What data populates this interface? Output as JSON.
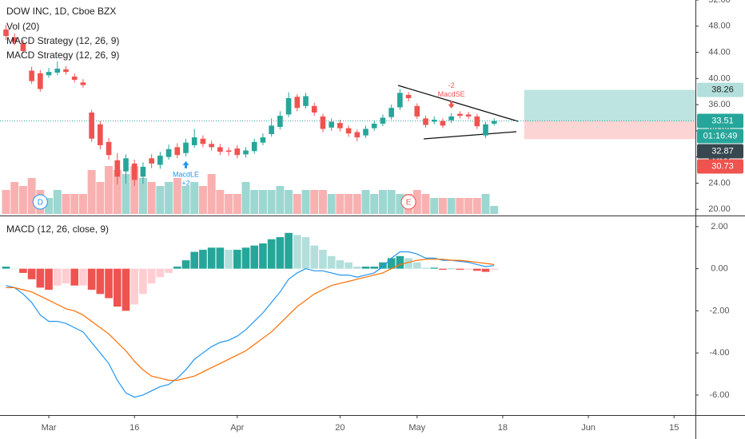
{
  "chart_data": [
    {
      "type": "candlestick",
      "title": "DOW INC, 1D, Cboe BZX",
      "indicators": [
        "Vol (20)",
        "MACD Strategy (12, 26, 9)",
        "MACD Strategy (12, 26, 9)"
      ],
      "xlim": [
        -0.7,
        80.5
      ],
      "ylim": [
        19.3,
        52.0
      ],
      "yticks": [
        {
          "value": 20,
          "label": "20.00"
        },
        {
          "value": 24,
          "label": "24.00"
        },
        {
          "value": 28,
          "label": "28.00"
        },
        {
          "value": 32,
          "label": "32.00"
        },
        {
          "value": 36,
          "label": "36.00"
        },
        {
          "value": 40,
          "label": "40.00"
        },
        {
          "value": 44,
          "label": "44.00"
        },
        {
          "value": 48,
          "label": "48.00"
        },
        {
          "value": 52,
          "label": "52.00"
        }
      ],
      "up_color": "#26a69a",
      "down_color": "#ef5350",
      "open": [
        47.5,
        46.3,
        45.4,
        41.2,
        40.8,
        40.5,
        40.9,
        41.4,
        40.3,
        39.4,
        34.8,
        33.0,
        30.3,
        27.5,
        25.8,
        27.0,
        25.0,
        27.8,
        26.8,
        28.0,
        29.5,
        28.6,
        29.8,
        30.8,
        30.0,
        29.5,
        29.0,
        29.3,
        28.4,
        28.9,
        30.2,
        31.5,
        32.6,
        34.5,
        37.2,
        35.8,
        35.8,
        34.2,
        32.5,
        33.2,
        32.4,
        31.8,
        31.3,
        32.4,
        33.1,
        34.1,
        35.6,
        37.5,
        35.8,
        33.9,
        33.4,
        33.5,
        33.6,
        34.6,
        34.5,
        34.2,
        31.3,
        33.1
      ],
      "high": [
        48.2,
        46.9,
        45.9,
        41.8,
        41.3,
        41.6,
        42.6,
        41.9,
        40.8,
        39.9,
        35.2,
        33.5,
        30.9,
        28.6,
        28.4,
        27.6,
        27.2,
        28.4,
        28.8,
        29.9,
        30.1,
        30.8,
        32.3,
        31.3,
        30.5,
        30.0,
        29.5,
        29.8,
        29.5,
        30.8,
        31.6,
        33.9,
        35.0,
        37.9,
        37.6,
        37.8,
        36.3,
        34.6,
        33.9,
        33.7,
        32.8,
        32.2,
        32.8,
        33.6,
        34.5,
        36.0,
        38.4,
        37.9,
        36.2,
        34.3,
        34.2,
        33.9,
        34.7,
        35.0,
        34.9,
        34.6,
        33.4,
        33.9
      ],
      "low": [
        45.9,
        45.1,
        43.8,
        39.2,
        38.0,
        40.1,
        40.5,
        40.6,
        39.4,
        38.6,
        30.3,
        29.2,
        27.6,
        23.8,
        23.9,
        23.6,
        23.9,
        26.3,
        26.2,
        27.6,
        27.8,
        28.1,
        29.4,
        29.5,
        29.0,
        28.3,
        28.2,
        27.8,
        27.9,
        28.5,
        29.8,
        31.1,
        32.2,
        34.1,
        35.0,
        35.4,
        34.3,
        31.8,
        32.0,
        31.9,
        31.1,
        30.4,
        30.9,
        32.0,
        32.7,
        33.7,
        35.2,
        36.5,
        33.8,
        32.5,
        33.0,
        32.4,
        33.2,
        33.9,
        33.8,
        32.3,
        30.9,
        32.8
      ],
      "close": [
        46.5,
        45.6,
        44.2,
        39.6,
        38.4,
        41.0,
        41.5,
        41.0,
        39.8,
        39.0,
        30.8,
        29.8,
        28.3,
        25.0,
        27.8,
        24.5,
        26.5,
        27.0,
        28.2,
        29.2,
        28.3,
        30.2,
        31.0,
        30.0,
        29.5,
        28.8,
        28.8,
        28.3,
        29.0,
        30.3,
        31.0,
        32.8,
        34.3,
        37.0,
        35.5,
        37.3,
        34.8,
        32.3,
        33.4,
        32.4,
        31.6,
        31.0,
        32.3,
        33.1,
        34.0,
        35.5,
        37.8,
        37.0,
        34.2,
        32.9,
        33.7,
        32.8,
        34.2,
        34.3,
        34.2,
        32.7,
        33.0,
        33.51
      ],
      "volume": [
        6,
        8,
        7,
        9,
        6,
        4,
        6,
        5,
        5,
        5,
        11,
        8,
        12,
        11,
        10,
        12,
        9,
        8,
        7,
        8,
        9,
        7,
        8,
        7,
        10,
        6,
        5,
        5,
        8,
        6,
        6,
        6,
        7,
        6,
        5,
        6,
        6,
        6,
        5,
        5,
        5,
        5,
        6,
        5,
        6,
        6,
        5,
        5,
        6,
        5,
        4,
        4,
        4,
        4,
        4,
        4,
        5,
        2
      ],
      "price_labels": [
        38.26,
        33.51,
        32.87,
        30.73
      ],
      "price_label_colors": [
        "#b2dfdb",
        "#26a69a",
        "#37474f",
        "#ef5350"
      ],
      "countdown": "01:16:49",
      "position_start": 60.5,
      "signals": [
        {
          "index": 21,
          "label": "MacdLE",
          "qty": "+2",
          "color": "#2196f3"
        },
        {
          "index": 52,
          "label": "MacdSE",
          "qty": "-2",
          "color": "#ef5350"
        }
      ],
      "events": [
        {
          "index": 4,
          "label": "D",
          "color": "#2196f3"
        },
        {
          "index": 47,
          "label": "E",
          "color": "#ef5350"
        }
      ]
    },
    {
      "type": "macd",
      "title": "MACD (12, 26, close, 9)",
      "xlim": [
        -0.7,
        80.5
      ],
      "ylim": [
        -6.95,
        2.45
      ],
      "yticks": [
        {
          "value": -6,
          "label": "-6.00"
        },
        {
          "value": -4,
          "label": "-4.00"
        },
        {
          "value": -2,
          "label": "-2.00"
        },
        {
          "value": 0,
          "label": "0.00"
        },
        {
          "value": 2,
          "label": "2.00"
        }
      ],
      "xticks": [
        {
          "value": 5,
          "label": "Mar"
        },
        {
          "value": 15,
          "label": "16"
        },
        {
          "value": 27,
          "label": "Apr"
        },
        {
          "value": 39,
          "label": "20"
        },
        {
          "value": 48,
          "label": "May"
        },
        {
          "value": 58,
          "label": "18"
        },
        {
          "value": 68,
          "label": "Jun"
        },
        {
          "value": 78,
          "label": "15"
        }
      ],
      "histogram": [
        0.1,
        0.0,
        -0.2,
        -0.5,
        -0.9,
        -1.0,
        -0.8,
        -0.7,
        -0.8,
        -0.8,
        -1.0,
        -1.2,
        -1.4,
        -1.8,
        -2.0,
        -1.7,
        -1.2,
        -0.7,
        -0.4,
        -0.2,
        0.1,
        0.4,
        0.8,
        0.9,
        1.0,
        1.0,
        0.9,
        0.9,
        1.0,
        1.1,
        1.2,
        1.4,
        1.5,
        1.7,
        1.6,
        1.5,
        1.1,
        0.9,
        0.6,
        0.4,
        0.3,
        0.1,
        0.1,
        0.1,
        0.3,
        0.5,
        0.6,
        0.5,
        0.3,
        0.05,
        0.05,
        -0.05,
        0,
        -0.05,
        -0.05,
        -0.1,
        -0.15,
        -0.05
      ],
      "series": [
        {
          "color": "#2196f3",
          "values": [
            -0.8,
            -0.9,
            -1.2,
            -1.6,
            -2.2,
            -2.5,
            -2.5,
            -2.6,
            -2.8,
            -3.0,
            -3.5,
            -4.0,
            -4.5,
            -5.3,
            -5.9,
            -6.1,
            -6.0,
            -5.8,
            -5.6,
            -5.5,
            -5.2,
            -4.8,
            -4.3,
            -4.0,
            -3.7,
            -3.5,
            -3.4,
            -3.2,
            -2.9,
            -2.5,
            -2.1,
            -1.6,
            -1.1,
            -0.5,
            -0.2,
            0.0,
            -0.1,
            -0.1,
            -0.2,
            -0.3,
            -0.3,
            -0.4,
            -0.3,
            -0.2,
            0.1,
            0.5,
            0.8,
            0.8,
            0.7,
            0.5,
            0.5,
            0.4,
            0.4,
            0.35,
            0.3,
            0.2,
            0.1,
            0.15
          ]
        },
        {
          "color": "#ff6d00",
          "values": [
            -0.9,
            -0.9,
            -1.0,
            -1.1,
            -1.3,
            -1.5,
            -1.7,
            -1.9,
            -2.0,
            -2.2,
            -2.5,
            -2.8,
            -3.1,
            -3.5,
            -3.9,
            -4.4,
            -4.8,
            -5.1,
            -5.2,
            -5.3,
            -5.3,
            -5.2,
            -5.1,
            -4.9,
            -4.7,
            -4.5,
            -4.3,
            -4.1,
            -3.9,
            -3.6,
            -3.3,
            -3.0,
            -2.6,
            -2.2,
            -1.8,
            -1.5,
            -1.2,
            -1.0,
            -0.8,
            -0.7,
            -0.6,
            -0.5,
            -0.4,
            -0.3,
            -0.2,
            0.0,
            0.2,
            0.3,
            0.4,
            0.45,
            0.45,
            0.45,
            0.4,
            0.4,
            0.35,
            0.3,
            0.25,
            0.2
          ]
        }
      ],
      "histogram_colors": [
        "#26a69a",
        "#b2dfdb",
        "#ffcdd2",
        "#ef5350"
      ]
    }
  ]
}
